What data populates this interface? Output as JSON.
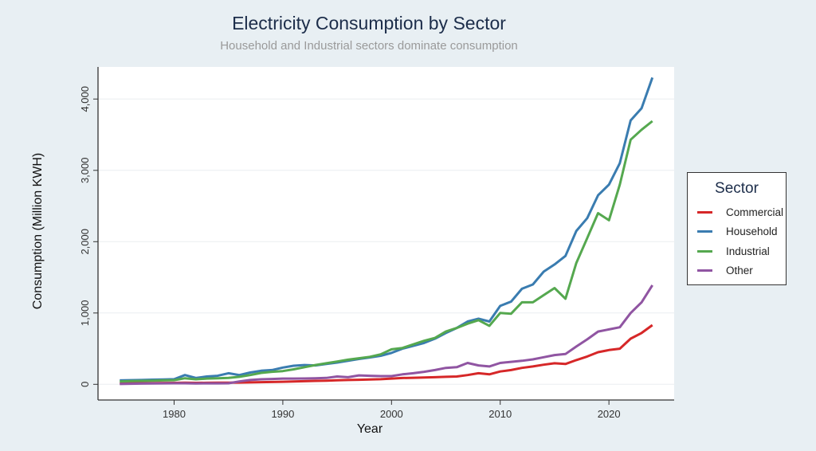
{
  "chart_data": {
    "type": "line",
    "title": "Electricity Consumption by Sector",
    "subtitle": "Household and Industrial sectors dominate consumption",
    "xlabel": "Year",
    "ylabel": "Consumption (Million KWH)",
    "xlim": [
      1973,
      2026
    ],
    "ylim": [
      -220,
      4450
    ],
    "xticks": [
      1980,
      1990,
      2000,
      2010,
      2020
    ],
    "xtick_labels": [
      "1980",
      "1990",
      "2000",
      "2010",
      "2020"
    ],
    "yticks": [
      0,
      1000,
      2000,
      3000,
      4000
    ],
    "ytick_labels": [
      "0",
      "1,000",
      "2,000",
      "3,000",
      "4,000"
    ],
    "grid": true,
    "legend": {
      "title": "Sector",
      "position": "right"
    },
    "x": [
      1975,
      1976,
      1977,
      1978,
      1979,
      1980,
      1981,
      1982,
      1983,
      1984,
      1985,
      1986,
      1987,
      1988,
      1989,
      1990,
      1991,
      1992,
      1993,
      1994,
      1995,
      1996,
      1997,
      1998,
      1999,
      2000,
      2001,
      2002,
      2003,
      2004,
      2005,
      2006,
      2007,
      2008,
      2009,
      2010,
      2011,
      2012,
      2013,
      2014,
      2015,
      2016,
      2017,
      2018,
      2019,
      2020,
      2021,
      2022,
      2023,
      2024
    ],
    "series": [
      {
        "name": "Commercial",
        "color": "#d62728",
        "values": [
          15,
          16,
          17,
          18,
          19,
          20,
          22,
          20,
          21,
          22,
          23,
          25,
          27,
          30,
          33,
          36,
          40,
          44,
          48,
          52,
          56,
          60,
          64,
          68,
          72,
          80,
          88,
          92,
          95,
          100,
          105,
          110,
          130,
          155,
          140,
          180,
          200,
          230,
          250,
          275,
          295,
          285,
          340,
          390,
          450,
          480,
          500,
          640,
          720,
          830
        ]
      },
      {
        "name": "Household",
        "color": "#3a7cb0",
        "values": [
          55,
          58,
          60,
          65,
          68,
          72,
          130,
          90,
          110,
          120,
          155,
          130,
          165,
          190,
          200,
          235,
          260,
          270,
          265,
          285,
          305,
          330,
          355,
          375,
          400,
          440,
          500,
          540,
          580,
          640,
          720,
          790,
          880,
          920,
          880,
          1100,
          1160,
          1340,
          1400,
          1580,
          1680,
          1800,
          2150,
          2330,
          2650,
          2800,
          3100,
          3700,
          3870,
          4300
        ]
      },
      {
        "name": "Industrial",
        "color": "#55a84f",
        "values": [
          40,
          45,
          48,
          52,
          55,
          58,
          85,
          70,
          80,
          85,
          90,
          105,
          130,
          160,
          175,
          185,
          210,
          240,
          270,
          295,
          320,
          345,
          365,
          385,
          420,
          490,
          510,
          560,
          610,
          650,
          740,
          790,
          850,
          900,
          820,
          1000,
          990,
          1150,
          1150,
          1250,
          1350,
          1200,
          1700,
          2050,
          2400,
          2300,
          2800,
          3430,
          3570,
          3690
        ]
      },
      {
        "name": "Other",
        "color": "#9055a2",
        "values": [
          5,
          8,
          10,
          12,
          13,
          15,
          15,
          12,
          13,
          14,
          15,
          40,
          60,
          70,
          75,
          80,
          80,
          82,
          85,
          90,
          110,
          100,
          125,
          120,
          115,
          115,
          140,
          155,
          175,
          200,
          230,
          240,
          300,
          265,
          250,
          300,
          315,
          330,
          350,
          380,
          410,
          425,
          530,
          630,
          740,
          770,
          800,
          1000,
          1150,
          1390
        ]
      }
    ]
  }
}
